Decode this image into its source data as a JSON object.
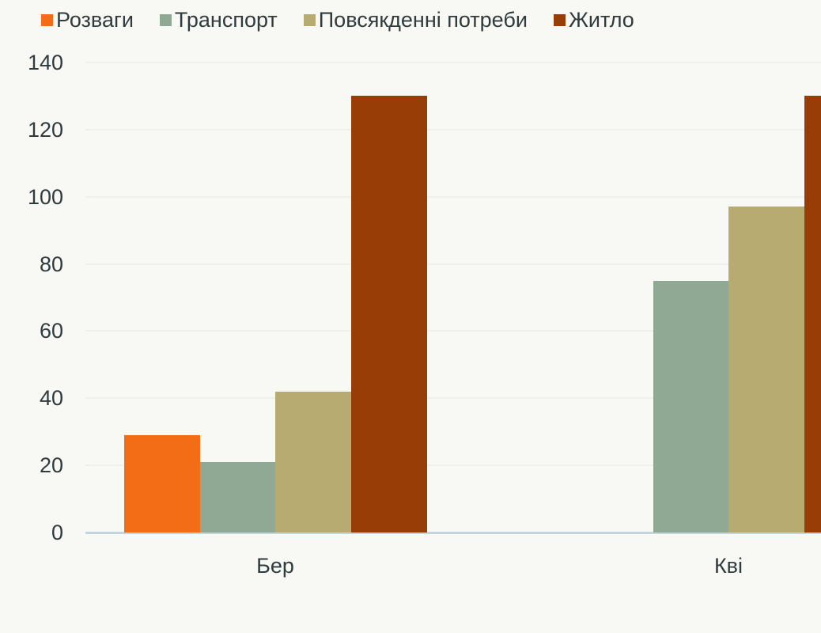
{
  "chart_data": {
    "type": "bar",
    "title": "",
    "xlabel": "",
    "ylabel": "",
    "categories": [
      "Бер",
      "Кві"
    ],
    "series": [
      {
        "name": "Розваги",
        "color": "#f36c16",
        "values": [
          29,
          0
        ]
      },
      {
        "name": "Транспорт",
        "color": "#8fa994",
        "values": [
          21,
          75
        ]
      },
      {
        "name": "Повсякденні потреби",
        "color": "#b8ab72",
        "values": [
          42,
          97
        ]
      },
      {
        "name": "Житло",
        "color": "#993d06",
        "values": [
          130,
          130
        ]
      }
    ],
    "ylim": [
      0,
      140
    ],
    "yticks": [
      0,
      20,
      40,
      60,
      80,
      100,
      120,
      140
    ],
    "grid": true,
    "legend_position": "top"
  },
  "legend": {
    "items": [
      {
        "label": "Розваги",
        "color": "#f36c16"
      },
      {
        "label": "Транспорт",
        "color": "#8fa994"
      },
      {
        "label": "Повсякденні потреби",
        "color": "#b8ab72"
      },
      {
        "label": "Житло",
        "color": "#993d06"
      }
    ]
  },
  "axis": {
    "yticks": [
      "0",
      "20",
      "40",
      "60",
      "80",
      "100",
      "120",
      "140"
    ],
    "categories": [
      "Бер",
      "Кві"
    ]
  }
}
